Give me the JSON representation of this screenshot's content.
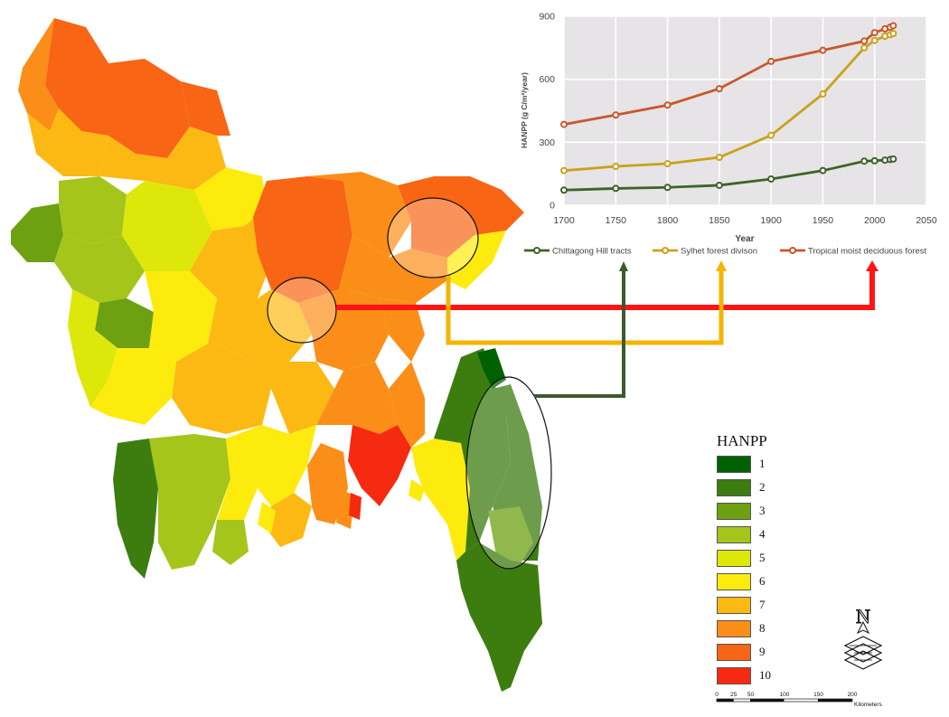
{
  "legend": {
    "title": "HANPP",
    "classes": [
      {
        "label": "1",
        "color": "#006100"
      },
      {
        "label": "2",
        "color": "#3d7d10"
      },
      {
        "label": "3",
        "color": "#6da112"
      },
      {
        "label": "4",
        "color": "#a5c51a"
      },
      {
        "label": "5",
        "color": "#dde80a"
      },
      {
        "label": "6",
        "color": "#fdeb0e"
      },
      {
        "label": "7",
        "color": "#fdb913"
      },
      {
        "label": "8",
        "color": "#fb8e18"
      },
      {
        "label": "9",
        "color": "#f86514"
      },
      {
        "label": "10",
        "color": "#f52a10"
      }
    ]
  },
  "north_arrow": {
    "label": "N"
  },
  "scale_bar": {
    "ticks": [
      "0",
      "25",
      "50",
      "100",
      "150",
      "200"
    ],
    "unit": "Kilometers"
  },
  "connector_colors": {
    "tropical": "#ff1414",
    "sylhet": "#f5b400",
    "chittagong": "#3c5a2a"
  },
  "chart_data": {
    "type": "line",
    "title": "",
    "xlabel": "Year",
    "ylabel": "HANPP (g C/m²/year)",
    "xlim": [
      1700,
      2050
    ],
    "ylim": [
      0,
      900
    ],
    "xticks": [
      "1700",
      "1750",
      "1800",
      "1850",
      "1900",
      "1950",
      "2000",
      "2050"
    ],
    "yticks": [
      "0",
      "300",
      "600",
      "900"
    ],
    "grid": true,
    "legend_position": "bottom",
    "series": [
      {
        "name": "Chittagong Hill tracts",
        "color": "#3e6327",
        "x": [
          1700,
          1750,
          1800,
          1850,
          1900,
          1950,
          1990,
          2000,
          2010,
          2015,
          2018
        ],
        "y": [
          72,
          80,
          85,
          95,
          125,
          165,
          210,
          212,
          215,
          218,
          220
        ]
      },
      {
        "name": "Sylhet forest divison",
        "color": "#c9a21a",
        "x": [
          1700,
          1750,
          1800,
          1850,
          1900,
          1950,
          1990,
          2000,
          2010,
          2015,
          2018
        ],
        "y": [
          165,
          185,
          198,
          228,
          333,
          530,
          750,
          785,
          805,
          812,
          818
        ]
      },
      {
        "name": "Tropical moist deciduous forest",
        "color": "#c9572a",
        "x": [
          1700,
          1750,
          1800,
          1850,
          1900,
          1950,
          1990,
          2000,
          2010,
          2015,
          2018
        ],
        "y": [
          385,
          430,
          477,
          555,
          685,
          738,
          782,
          822,
          840,
          848,
          855
        ]
      }
    ]
  }
}
